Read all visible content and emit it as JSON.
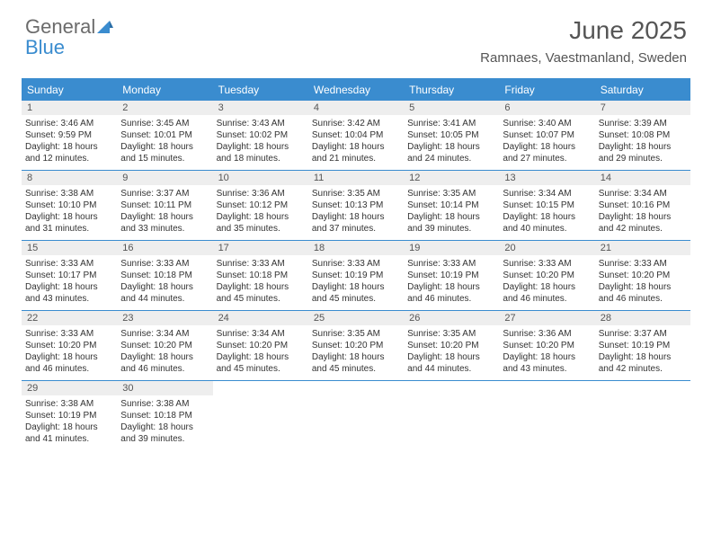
{
  "logo": {
    "text1": "General",
    "text2": "Blue"
  },
  "title": "June 2025",
  "location": "Ramnaes, Vaestmanland, Sweden",
  "colors": {
    "accent": "#3a8ccf",
    "band": "#eeeeee",
    "text": "#333333",
    "muted": "#555555",
    "bg": "#ffffff"
  },
  "day_headers": [
    "Sunday",
    "Monday",
    "Tuesday",
    "Wednesday",
    "Thursday",
    "Friday",
    "Saturday"
  ],
  "weeks": [
    [
      {
        "n": "1",
        "sr": "Sunrise: 3:46 AM",
        "ss": "Sunset: 9:59 PM",
        "d1": "Daylight: 18 hours",
        "d2": "and 12 minutes."
      },
      {
        "n": "2",
        "sr": "Sunrise: 3:45 AM",
        "ss": "Sunset: 10:01 PM",
        "d1": "Daylight: 18 hours",
        "d2": "and 15 minutes."
      },
      {
        "n": "3",
        "sr": "Sunrise: 3:43 AM",
        "ss": "Sunset: 10:02 PM",
        "d1": "Daylight: 18 hours",
        "d2": "and 18 minutes."
      },
      {
        "n": "4",
        "sr": "Sunrise: 3:42 AM",
        "ss": "Sunset: 10:04 PM",
        "d1": "Daylight: 18 hours",
        "d2": "and 21 minutes."
      },
      {
        "n": "5",
        "sr": "Sunrise: 3:41 AM",
        "ss": "Sunset: 10:05 PM",
        "d1": "Daylight: 18 hours",
        "d2": "and 24 minutes."
      },
      {
        "n": "6",
        "sr": "Sunrise: 3:40 AM",
        "ss": "Sunset: 10:07 PM",
        "d1": "Daylight: 18 hours",
        "d2": "and 27 minutes."
      },
      {
        "n": "7",
        "sr": "Sunrise: 3:39 AM",
        "ss": "Sunset: 10:08 PM",
        "d1": "Daylight: 18 hours",
        "d2": "and 29 minutes."
      }
    ],
    [
      {
        "n": "8",
        "sr": "Sunrise: 3:38 AM",
        "ss": "Sunset: 10:10 PM",
        "d1": "Daylight: 18 hours",
        "d2": "and 31 minutes."
      },
      {
        "n": "9",
        "sr": "Sunrise: 3:37 AM",
        "ss": "Sunset: 10:11 PM",
        "d1": "Daylight: 18 hours",
        "d2": "and 33 minutes."
      },
      {
        "n": "10",
        "sr": "Sunrise: 3:36 AM",
        "ss": "Sunset: 10:12 PM",
        "d1": "Daylight: 18 hours",
        "d2": "and 35 minutes."
      },
      {
        "n": "11",
        "sr": "Sunrise: 3:35 AM",
        "ss": "Sunset: 10:13 PM",
        "d1": "Daylight: 18 hours",
        "d2": "and 37 minutes."
      },
      {
        "n": "12",
        "sr": "Sunrise: 3:35 AM",
        "ss": "Sunset: 10:14 PM",
        "d1": "Daylight: 18 hours",
        "d2": "and 39 minutes."
      },
      {
        "n": "13",
        "sr": "Sunrise: 3:34 AM",
        "ss": "Sunset: 10:15 PM",
        "d1": "Daylight: 18 hours",
        "d2": "and 40 minutes."
      },
      {
        "n": "14",
        "sr": "Sunrise: 3:34 AM",
        "ss": "Sunset: 10:16 PM",
        "d1": "Daylight: 18 hours",
        "d2": "and 42 minutes."
      }
    ],
    [
      {
        "n": "15",
        "sr": "Sunrise: 3:33 AM",
        "ss": "Sunset: 10:17 PM",
        "d1": "Daylight: 18 hours",
        "d2": "and 43 minutes."
      },
      {
        "n": "16",
        "sr": "Sunrise: 3:33 AM",
        "ss": "Sunset: 10:18 PM",
        "d1": "Daylight: 18 hours",
        "d2": "and 44 minutes."
      },
      {
        "n": "17",
        "sr": "Sunrise: 3:33 AM",
        "ss": "Sunset: 10:18 PM",
        "d1": "Daylight: 18 hours",
        "d2": "and 45 minutes."
      },
      {
        "n": "18",
        "sr": "Sunrise: 3:33 AM",
        "ss": "Sunset: 10:19 PM",
        "d1": "Daylight: 18 hours",
        "d2": "and 45 minutes."
      },
      {
        "n": "19",
        "sr": "Sunrise: 3:33 AM",
        "ss": "Sunset: 10:19 PM",
        "d1": "Daylight: 18 hours",
        "d2": "and 46 minutes."
      },
      {
        "n": "20",
        "sr": "Sunrise: 3:33 AM",
        "ss": "Sunset: 10:20 PM",
        "d1": "Daylight: 18 hours",
        "d2": "and 46 minutes."
      },
      {
        "n": "21",
        "sr": "Sunrise: 3:33 AM",
        "ss": "Sunset: 10:20 PM",
        "d1": "Daylight: 18 hours",
        "d2": "and 46 minutes."
      }
    ],
    [
      {
        "n": "22",
        "sr": "Sunrise: 3:33 AM",
        "ss": "Sunset: 10:20 PM",
        "d1": "Daylight: 18 hours",
        "d2": "and 46 minutes."
      },
      {
        "n": "23",
        "sr": "Sunrise: 3:34 AM",
        "ss": "Sunset: 10:20 PM",
        "d1": "Daylight: 18 hours",
        "d2": "and 46 minutes."
      },
      {
        "n": "24",
        "sr": "Sunrise: 3:34 AM",
        "ss": "Sunset: 10:20 PM",
        "d1": "Daylight: 18 hours",
        "d2": "and 45 minutes."
      },
      {
        "n": "25",
        "sr": "Sunrise: 3:35 AM",
        "ss": "Sunset: 10:20 PM",
        "d1": "Daylight: 18 hours",
        "d2": "and 45 minutes."
      },
      {
        "n": "26",
        "sr": "Sunrise: 3:35 AM",
        "ss": "Sunset: 10:20 PM",
        "d1": "Daylight: 18 hours",
        "d2": "and 44 minutes."
      },
      {
        "n": "27",
        "sr": "Sunrise: 3:36 AM",
        "ss": "Sunset: 10:20 PM",
        "d1": "Daylight: 18 hours",
        "d2": "and 43 minutes."
      },
      {
        "n": "28",
        "sr": "Sunrise: 3:37 AM",
        "ss": "Sunset: 10:19 PM",
        "d1": "Daylight: 18 hours",
        "d2": "and 42 minutes."
      }
    ],
    [
      {
        "n": "29",
        "sr": "Sunrise: 3:38 AM",
        "ss": "Sunset: 10:19 PM",
        "d1": "Daylight: 18 hours",
        "d2": "and 41 minutes."
      },
      {
        "n": "30",
        "sr": "Sunrise: 3:38 AM",
        "ss": "Sunset: 10:18 PM",
        "d1": "Daylight: 18 hours",
        "d2": "and 39 minutes."
      },
      null,
      null,
      null,
      null,
      null
    ]
  ]
}
